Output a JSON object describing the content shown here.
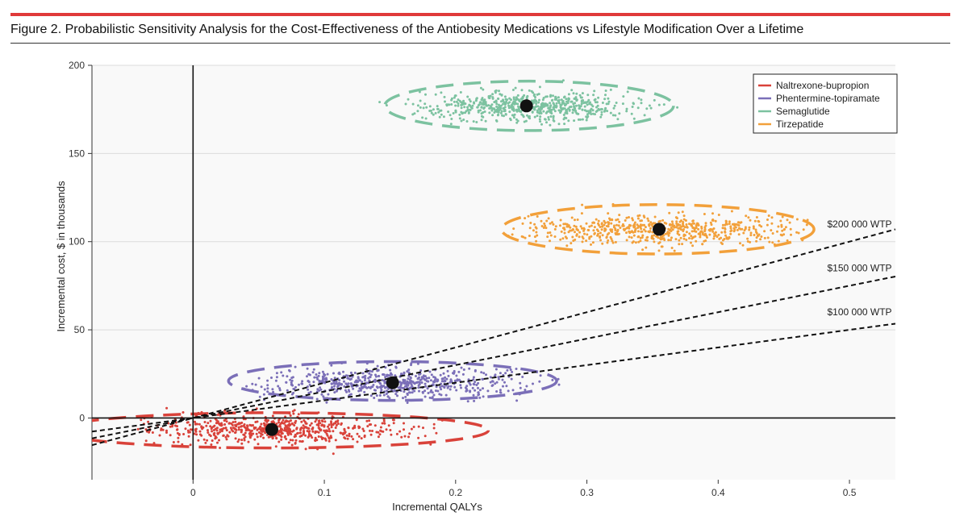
{
  "figure": {
    "title": "Figure 2. Probabilistic Sensitivity Analysis for the Cost-Effectiveness of the Antiobesity Medications vs Lifestyle Modification Over a Lifetime",
    "accent_color": "#e03a3a"
  },
  "chart_data": {
    "type": "scatter",
    "xlabel": "Incremental QALYs",
    "ylabel": "Incremental cost, $ in thousands",
    "xlim": [
      -0.077,
      0.535
    ],
    "ylim": [
      -35,
      200
    ],
    "xticks": [
      0,
      0.1,
      0.2,
      0.3,
      0.4,
      0.5
    ],
    "xtick_labels": [
      "0",
      "0.1",
      "0.2",
      "0.3",
      "0.4",
      "0.5"
    ],
    "yticks": [
      0,
      50,
      100,
      150,
      200
    ],
    "ytick_labels": [
      "0",
      "50",
      "100",
      "150",
      "200"
    ],
    "grid": true,
    "legend_position": "top-right",
    "series": [
      {
        "name": "Naltrexone-bupropion",
        "color": "#d9423a",
        "mean": {
          "x": 0.06,
          "y": -6.5
        },
        "spread": {
          "x_sd": 0.05,
          "y_sd": 3.8,
          "x_min": -0.045,
          "x_max": 0.19,
          "y_min": -22,
          "y_max": 8
        },
        "ellipse": {
          "cx": 0.06,
          "cy": -7,
          "rx": 0.165,
          "ry": 10
        }
      },
      {
        "name": "Phentermine-topiramate",
        "color": "#7b6fb8",
        "mean": {
          "x": 0.152,
          "y": 20
        },
        "spread": {
          "x_sd": 0.05,
          "y_sd": 4.2,
          "x_min": 0.038,
          "x_max": 0.28,
          "y_min": 5,
          "y_max": 36
        },
        "ellipse": {
          "cx": 0.152,
          "cy": 21,
          "rx": 0.125,
          "ry": 11
        }
      },
      {
        "name": "Semaglutide",
        "color": "#7cc2a0",
        "mean": {
          "x": 0.254,
          "y": 177
        },
        "spread": {
          "x_sd": 0.04,
          "y_sd": 4.2,
          "x_min": 0.133,
          "x_max": 0.382,
          "y_min": 163,
          "y_max": 194
        },
        "ellipse": {
          "cx": 0.256,
          "cy": 177,
          "rx": 0.11,
          "ry": 14
        }
      },
      {
        "name": "Tirzepatide",
        "color": "#f2a03a",
        "mean": {
          "x": 0.355,
          "y": 107
        },
        "spread": {
          "x_sd": 0.056,
          "y_sd": 4.2,
          "x_min": 0.24,
          "x_max": 0.47,
          "y_min": 92,
          "y_max": 127
        },
        "ellipse": {
          "cx": 0.354,
          "cy": 107,
          "rx": 0.119,
          "ry": 14
        }
      }
    ],
    "wtp_lines": [
      {
        "label": "$200 000 WTP",
        "slope": 200,
        "label_x": 0.48,
        "label_y": 110
      },
      {
        "label": "$150 000 WTP",
        "slope": 150,
        "label_x": 0.48,
        "label_y": 85
      },
      {
        "label": "$100 000 WTP",
        "slope": 100,
        "label_x": 0.48,
        "label_y": 60
      }
    ]
  }
}
